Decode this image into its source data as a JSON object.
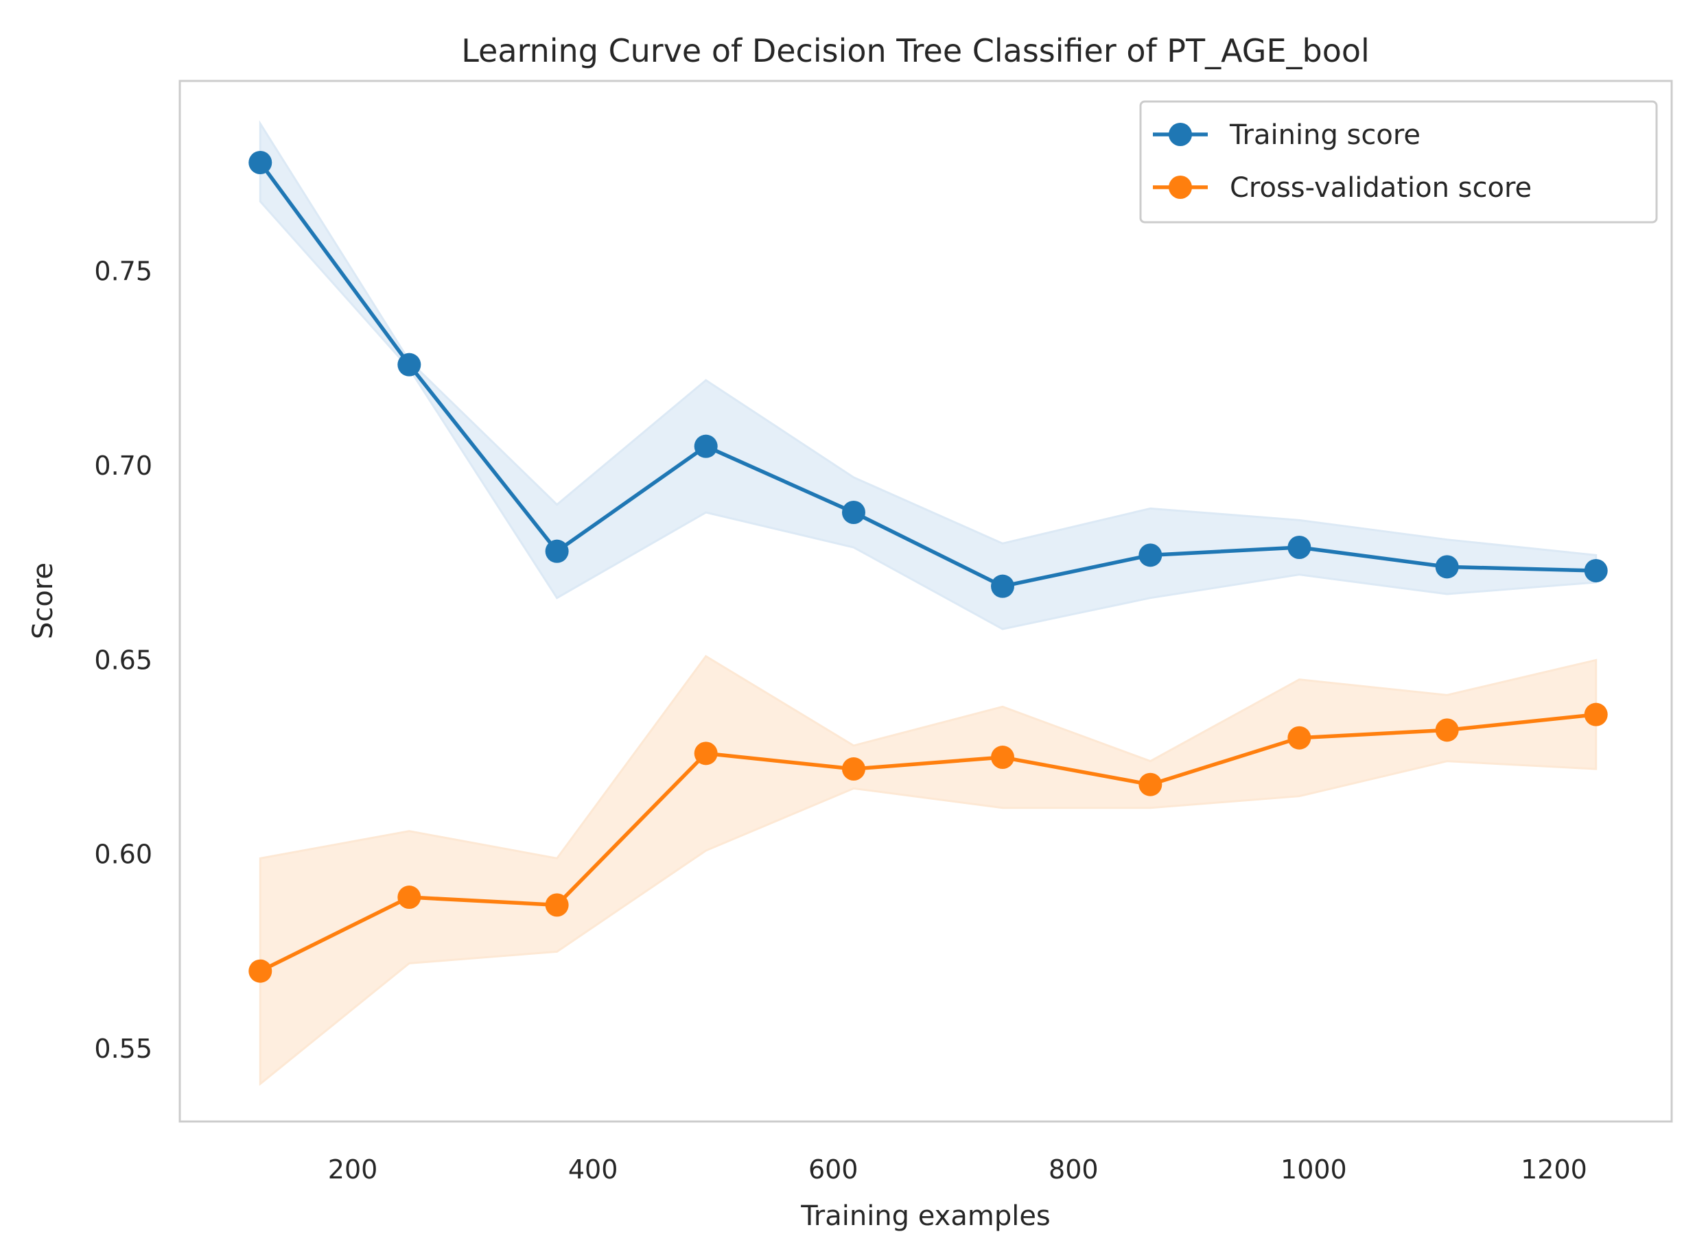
{
  "chart_data": {
    "type": "line",
    "title": "Learning Curve of Decision Tree Classifier of PT_AGE_bool",
    "xlabel": "Training examples",
    "ylabel": "Score",
    "xlim": [
      56,
      1298
    ],
    "ylim": [
      0.5313,
      0.799
    ],
    "xticks": [
      200,
      400,
      600,
      800,
      1000,
      1200
    ],
    "yticks": [
      0.55,
      0.6,
      0.65,
      0.7,
      0.75
    ],
    "xtick_labels": [
      "200",
      "400",
      "600",
      "800",
      "1000",
      "1200"
    ],
    "ytick_labels": [
      "0.55",
      "0.60",
      "0.65",
      "0.70",
      "0.75"
    ],
    "grid": false,
    "legend_position": "top-right",
    "x": [
      123,
      247,
      370,
      494,
      617,
      741,
      864,
      988,
      1111,
      1235
    ],
    "series": [
      {
        "name": "Training score",
        "color": "#1f77b4",
        "band_color": "#dce9f5",
        "values": [
          0.778,
          0.726,
          0.678,
          0.705,
          0.688,
          0.669,
          0.677,
          0.679,
          0.674,
          0.673
        ],
        "lower": [
          0.768,
          0.725,
          0.666,
          0.688,
          0.679,
          0.658,
          0.666,
          0.672,
          0.667,
          0.67
        ],
        "upper": [
          0.788,
          0.727,
          0.69,
          0.722,
          0.697,
          0.68,
          0.689,
          0.686,
          0.681,
          0.677
        ]
      },
      {
        "name": "Cross-validation score",
        "color": "#ff7f0e",
        "band_color": "#fde8d4",
        "values": [
          0.57,
          0.589,
          0.587,
          0.626,
          0.622,
          0.625,
          0.618,
          0.63,
          0.632,
          0.636
        ],
        "lower": [
          0.541,
          0.572,
          0.575,
          0.601,
          0.617,
          0.612,
          0.612,
          0.615,
          0.624,
          0.622
        ],
        "upper": [
          0.599,
          0.606,
          0.599,
          0.651,
          0.628,
          0.638,
          0.624,
          0.645,
          0.641,
          0.65
        ]
      }
    ]
  }
}
